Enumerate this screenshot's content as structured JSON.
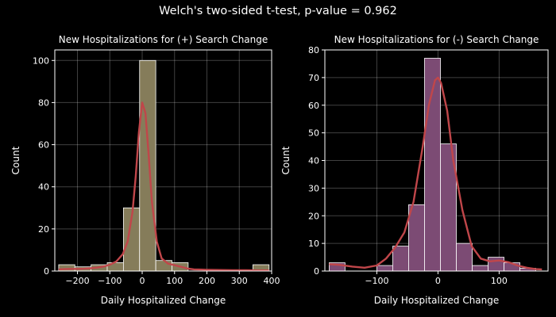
{
  "figure": {
    "suptitle": "Welch's two-sided t-test, p-value = 0.962"
  },
  "chart_data": [
    {
      "type": "bar",
      "subtype": "histogram-with-kde",
      "title": "New Hospitalizations for (+) Search Change",
      "xlabel": "Daily Hospitalized Change",
      "ylabel": "Count",
      "xlim": [
        -270,
        400
      ],
      "ylim": [
        0,
        105
      ],
      "xticks": [
        -200,
        -100,
        0,
        100,
        200,
        300,
        400
      ],
      "xtick_labels": [
        "−200",
        "−100",
        "0",
        "100",
        "200",
        "300",
        "400"
      ],
      "yticks": [
        0,
        20,
        40,
        60,
        80,
        100
      ],
      "ytick_labels": [
        "0",
        "20",
        "40",
        "60",
        "80",
        "100"
      ],
      "grid": true,
      "bar_color": "#857c5a",
      "kde_color": "#c0464a",
      "bins": [
        {
          "x0": -258,
          "x1": -208,
          "count": 3
        },
        {
          "x0": -208,
          "x1": -158,
          "count": 2
        },
        {
          "x0": -158,
          "x1": -108,
          "count": 3
        },
        {
          "x0": -108,
          "x1": -58,
          "count": 4
        },
        {
          "x0": -58,
          "x1": -8,
          "count": 30
        },
        {
          "x0": -8,
          "x1": 42,
          "count": 100
        },
        {
          "x0": 42,
          "x1": 92,
          "count": 5
        },
        {
          "x0": 92,
          "x1": 142,
          "count": 4
        },
        {
          "x0": 142,
          "x1": 192,
          "count": 0
        },
        {
          "x0": 192,
          "x1": 242,
          "count": 0
        },
        {
          "x0": 242,
          "x1": 292,
          "count": 0
        },
        {
          "x0": 292,
          "x1": 342,
          "count": 0
        },
        {
          "x0": 342,
          "x1": 392,
          "count": 3
        }
      ],
      "kde": {
        "x": [
          -258,
          -240,
          -220,
          -200,
          -180,
          -160,
          -140,
          -120,
          -100,
          -80,
          -60,
          -45,
          -30,
          -20,
          -10,
          0,
          10,
          20,
          30,
          45,
          60,
          80,
          100,
          120,
          140,
          160,
          200,
          240,
          280,
          320,
          360,
          392
        ],
        "y": [
          0.8,
          0.9,
          1.0,
          1.0,
          1.1,
          1.3,
          1.6,
          2.1,
          3.0,
          4.5,
          8,
          14,
          28,
          45,
          66,
          80,
          75,
          55,
          33,
          14,
          6,
          3.5,
          2.8,
          2.0,
          1.2,
          0.8,
          0.6,
          0.5,
          0.4,
          0.4,
          0.3,
          0.3
        ]
      }
    },
    {
      "type": "bar",
      "subtype": "histogram-with-kde",
      "title": "New Hospitalizations for (-) Search Change",
      "xlabel": "Daily Hospitalized Change",
      "ylabel": "Count",
      "xlim": [
        -185,
        180
      ],
      "ylim": [
        0,
        80
      ],
      "xticks": [
        -100,
        0,
        100
      ],
      "xtick_labels": [
        "−100",
        "0",
        "100"
      ],
      "yticks": [
        0,
        10,
        20,
        30,
        40,
        50,
        60,
        70,
        80
      ],
      "ytick_labels": [
        "0",
        "10",
        "20",
        "30",
        "40",
        "50",
        "60",
        "70",
        "80"
      ],
      "grid": true,
      "bar_color": "#7c4b74",
      "kde_color": "#c0464a",
      "bins": [
        {
          "x0": -178,
          "x1": -152,
          "count": 3
        },
        {
          "x0": -152,
          "x1": -126,
          "count": 0
        },
        {
          "x0": -126,
          "x1": -100,
          "count": 0
        },
        {
          "x0": -100,
          "x1": -74,
          "count": 2
        },
        {
          "x0": -74,
          "x1": -48,
          "count": 9
        },
        {
          "x0": -48,
          "x1": -22,
          "count": 24
        },
        {
          "x0": -22,
          "x1": 4,
          "count": 77
        },
        {
          "x0": 4,
          "x1": 30,
          "count": 46
        },
        {
          "x0": 30,
          "x1": 56,
          "count": 10
        },
        {
          "x0": 56,
          "x1": 82,
          "count": 2
        },
        {
          "x0": 82,
          "x1": 108,
          "count": 5
        },
        {
          "x0": 108,
          "x1": 134,
          "count": 3
        },
        {
          "x0": 134,
          "x1": 160,
          "count": 1
        }
      ],
      "kde": {
        "x": [
          -178,
          -160,
          -140,
          -120,
          -100,
          -85,
          -70,
          -55,
          -40,
          -25,
          -15,
          -5,
          0,
          5,
          15,
          25,
          40,
          55,
          70,
          85,
          100,
          115,
          130,
          145,
          160,
          170
        ],
        "y": [
          2.5,
          2.2,
          1.6,
          1.2,
          2.0,
          4.5,
          8.5,
          14,
          25,
          45,
          60,
          69,
          70,
          68,
          58,
          40,
          22,
          9,
          4.5,
          3.5,
          3.8,
          3.2,
          2.0,
          1.2,
          0.7,
          0.6
        ]
      }
    }
  ]
}
